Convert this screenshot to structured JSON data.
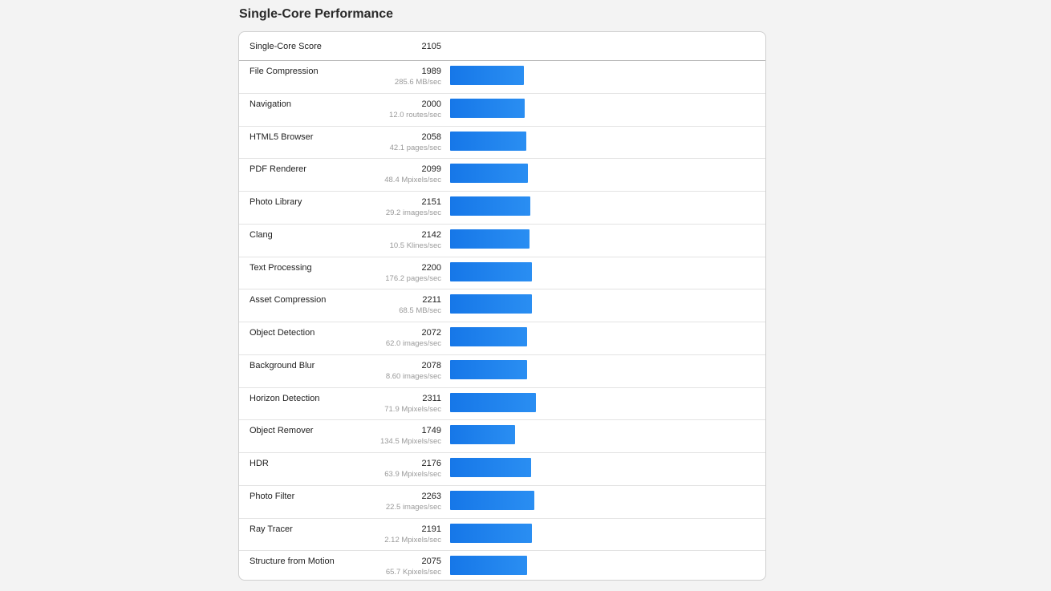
{
  "section": {
    "title": "Single-Core Performance"
  },
  "summary": {
    "label": "Single-Core Score",
    "score": "2105"
  },
  "bar_scale_max": 8200,
  "colors": {
    "bar": "#1677e8",
    "detail_text": "#9a9a9a"
  },
  "benchmarks": [
    {
      "name": "File Compression",
      "score": "1989",
      "value": 1989,
      "detail": "285.6 MB/sec"
    },
    {
      "name": "Navigation",
      "score": "2000",
      "value": 2000,
      "detail": "12.0 routes/sec"
    },
    {
      "name": "HTML5 Browser",
      "score": "2058",
      "value": 2058,
      "detail": "42.1 pages/sec"
    },
    {
      "name": "PDF Renderer",
      "score": "2099",
      "value": 2099,
      "detail": "48.4 Mpixels/sec"
    },
    {
      "name": "Photo Library",
      "score": "2151",
      "value": 2151,
      "detail": "29.2 images/sec"
    },
    {
      "name": "Clang",
      "score": "2142",
      "value": 2142,
      "detail": "10.5 Klines/sec"
    },
    {
      "name": "Text Processing",
      "score": "2200",
      "value": 2200,
      "detail": "176.2 pages/sec"
    },
    {
      "name": "Asset Compression",
      "score": "2211",
      "value": 2211,
      "detail": "68.5 MB/sec"
    },
    {
      "name": "Object Detection",
      "score": "2072",
      "value": 2072,
      "detail": "62.0 images/sec"
    },
    {
      "name": "Background Blur",
      "score": "2078",
      "value": 2078,
      "detail": "8.60 images/sec"
    },
    {
      "name": "Horizon Detection",
      "score": "2311",
      "value": 2311,
      "detail": "71.9 Mpixels/sec"
    },
    {
      "name": "Object Remover",
      "score": "1749",
      "value": 1749,
      "detail": "134.5 Mpixels/sec"
    },
    {
      "name": "HDR",
      "score": "2176",
      "value": 2176,
      "detail": "63.9 Mpixels/sec"
    },
    {
      "name": "Photo Filter",
      "score": "2263",
      "value": 2263,
      "detail": "22.5 images/sec"
    },
    {
      "name": "Ray Tracer",
      "score": "2191",
      "value": 2191,
      "detail": "2.12 Mpixels/sec"
    },
    {
      "name": "Structure from Motion",
      "score": "2075",
      "value": 2075,
      "detail": "65.7 Kpixels/sec"
    }
  ]
}
